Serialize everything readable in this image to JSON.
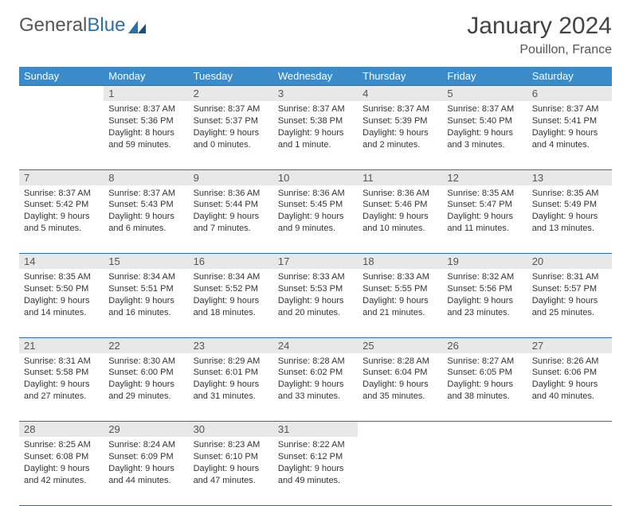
{
  "logo": {
    "text1": "General",
    "text2": "Blue"
  },
  "title": "January 2024",
  "location": "Pouillon, France",
  "colors": {
    "header_bg": "#3b8bc8",
    "header_fg": "#ffffff",
    "daynum_bg": "#e8e8e8",
    "rule": "#2f6fa7",
    "logo_gray": "#555555",
    "logo_blue": "#2f6fa7"
  },
  "days_of_week": [
    "Sunday",
    "Monday",
    "Tuesday",
    "Wednesday",
    "Thursday",
    "Friday",
    "Saturday"
  ],
  "weeks": [
    {
      "nums": [
        "",
        "1",
        "2",
        "3",
        "4",
        "5",
        "6"
      ],
      "cells": [
        null,
        {
          "sunrise": "Sunrise: 8:37 AM",
          "sunset": "Sunset: 5:36 PM",
          "dl1": "Daylight: 8 hours",
          "dl2": "and 59 minutes."
        },
        {
          "sunrise": "Sunrise: 8:37 AM",
          "sunset": "Sunset: 5:37 PM",
          "dl1": "Daylight: 9 hours",
          "dl2": "and 0 minutes."
        },
        {
          "sunrise": "Sunrise: 8:37 AM",
          "sunset": "Sunset: 5:38 PM",
          "dl1": "Daylight: 9 hours",
          "dl2": "and 1 minute."
        },
        {
          "sunrise": "Sunrise: 8:37 AM",
          "sunset": "Sunset: 5:39 PM",
          "dl1": "Daylight: 9 hours",
          "dl2": "and 2 minutes."
        },
        {
          "sunrise": "Sunrise: 8:37 AM",
          "sunset": "Sunset: 5:40 PM",
          "dl1": "Daylight: 9 hours",
          "dl2": "and 3 minutes."
        },
        {
          "sunrise": "Sunrise: 8:37 AM",
          "sunset": "Sunset: 5:41 PM",
          "dl1": "Daylight: 9 hours",
          "dl2": "and 4 minutes."
        }
      ]
    },
    {
      "nums": [
        "7",
        "8",
        "9",
        "10",
        "11",
        "12",
        "13"
      ],
      "cells": [
        {
          "sunrise": "Sunrise: 8:37 AM",
          "sunset": "Sunset: 5:42 PM",
          "dl1": "Daylight: 9 hours",
          "dl2": "and 5 minutes."
        },
        {
          "sunrise": "Sunrise: 8:37 AM",
          "sunset": "Sunset: 5:43 PM",
          "dl1": "Daylight: 9 hours",
          "dl2": "and 6 minutes."
        },
        {
          "sunrise": "Sunrise: 8:36 AM",
          "sunset": "Sunset: 5:44 PM",
          "dl1": "Daylight: 9 hours",
          "dl2": "and 7 minutes."
        },
        {
          "sunrise": "Sunrise: 8:36 AM",
          "sunset": "Sunset: 5:45 PM",
          "dl1": "Daylight: 9 hours",
          "dl2": "and 9 minutes."
        },
        {
          "sunrise": "Sunrise: 8:36 AM",
          "sunset": "Sunset: 5:46 PM",
          "dl1": "Daylight: 9 hours",
          "dl2": "and 10 minutes."
        },
        {
          "sunrise": "Sunrise: 8:35 AM",
          "sunset": "Sunset: 5:47 PM",
          "dl1": "Daylight: 9 hours",
          "dl2": "and 11 minutes."
        },
        {
          "sunrise": "Sunrise: 8:35 AM",
          "sunset": "Sunset: 5:49 PM",
          "dl1": "Daylight: 9 hours",
          "dl2": "and 13 minutes."
        }
      ]
    },
    {
      "nums": [
        "14",
        "15",
        "16",
        "17",
        "18",
        "19",
        "20"
      ],
      "cells": [
        {
          "sunrise": "Sunrise: 8:35 AM",
          "sunset": "Sunset: 5:50 PM",
          "dl1": "Daylight: 9 hours",
          "dl2": "and 14 minutes."
        },
        {
          "sunrise": "Sunrise: 8:34 AM",
          "sunset": "Sunset: 5:51 PM",
          "dl1": "Daylight: 9 hours",
          "dl2": "and 16 minutes."
        },
        {
          "sunrise": "Sunrise: 8:34 AM",
          "sunset": "Sunset: 5:52 PM",
          "dl1": "Daylight: 9 hours",
          "dl2": "and 18 minutes."
        },
        {
          "sunrise": "Sunrise: 8:33 AM",
          "sunset": "Sunset: 5:53 PM",
          "dl1": "Daylight: 9 hours",
          "dl2": "and 20 minutes."
        },
        {
          "sunrise": "Sunrise: 8:33 AM",
          "sunset": "Sunset: 5:55 PM",
          "dl1": "Daylight: 9 hours",
          "dl2": "and 21 minutes."
        },
        {
          "sunrise": "Sunrise: 8:32 AM",
          "sunset": "Sunset: 5:56 PM",
          "dl1": "Daylight: 9 hours",
          "dl2": "and 23 minutes."
        },
        {
          "sunrise": "Sunrise: 8:31 AM",
          "sunset": "Sunset: 5:57 PM",
          "dl1": "Daylight: 9 hours",
          "dl2": "and 25 minutes."
        }
      ]
    },
    {
      "nums": [
        "21",
        "22",
        "23",
        "24",
        "25",
        "26",
        "27"
      ],
      "cells": [
        {
          "sunrise": "Sunrise: 8:31 AM",
          "sunset": "Sunset: 5:58 PM",
          "dl1": "Daylight: 9 hours",
          "dl2": "and 27 minutes."
        },
        {
          "sunrise": "Sunrise: 8:30 AM",
          "sunset": "Sunset: 6:00 PM",
          "dl1": "Daylight: 9 hours",
          "dl2": "and 29 minutes."
        },
        {
          "sunrise": "Sunrise: 8:29 AM",
          "sunset": "Sunset: 6:01 PM",
          "dl1": "Daylight: 9 hours",
          "dl2": "and 31 minutes."
        },
        {
          "sunrise": "Sunrise: 8:28 AM",
          "sunset": "Sunset: 6:02 PM",
          "dl1": "Daylight: 9 hours",
          "dl2": "and 33 minutes."
        },
        {
          "sunrise": "Sunrise: 8:28 AM",
          "sunset": "Sunset: 6:04 PM",
          "dl1": "Daylight: 9 hours",
          "dl2": "and 35 minutes."
        },
        {
          "sunrise": "Sunrise: 8:27 AM",
          "sunset": "Sunset: 6:05 PM",
          "dl1": "Daylight: 9 hours",
          "dl2": "and 38 minutes."
        },
        {
          "sunrise": "Sunrise: 8:26 AM",
          "sunset": "Sunset: 6:06 PM",
          "dl1": "Daylight: 9 hours",
          "dl2": "and 40 minutes."
        }
      ]
    },
    {
      "nums": [
        "28",
        "29",
        "30",
        "31",
        "",
        "",
        ""
      ],
      "cells": [
        {
          "sunrise": "Sunrise: 8:25 AM",
          "sunset": "Sunset: 6:08 PM",
          "dl1": "Daylight: 9 hours",
          "dl2": "and 42 minutes."
        },
        {
          "sunrise": "Sunrise: 8:24 AM",
          "sunset": "Sunset: 6:09 PM",
          "dl1": "Daylight: 9 hours",
          "dl2": "and 44 minutes."
        },
        {
          "sunrise": "Sunrise: 8:23 AM",
          "sunset": "Sunset: 6:10 PM",
          "dl1": "Daylight: 9 hours",
          "dl2": "and 47 minutes."
        },
        {
          "sunrise": "Sunrise: 8:22 AM",
          "sunset": "Sunset: 6:12 PM",
          "dl1": "Daylight: 9 hours",
          "dl2": "and 49 minutes."
        },
        null,
        null,
        null
      ]
    }
  ]
}
